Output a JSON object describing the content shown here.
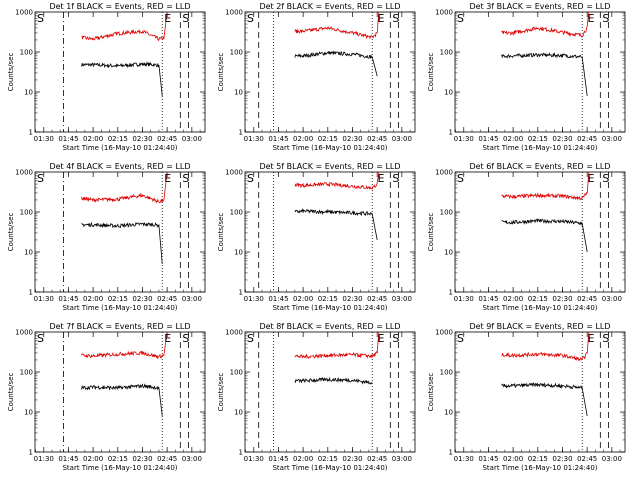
{
  "chart_data": [
    {
      "title": "Det 1f BLACK = Events, RED = LLD",
      "xlabel": "Start Time (16-May-10 01:24:40)",
      "ylabel": "Counts/sec",
      "type": "line",
      "yscale": "log",
      "ylim": [
        1,
        1000
      ],
      "xlim": [
        "01:24:40",
        "03:08"
      ],
      "xticks": [
        "01:30",
        "01:45",
        "02:00",
        "02:15",
        "02:30",
        "02:45",
        "03:00"
      ],
      "yticks": [
        "1",
        "10",
        "100",
        "1000"
      ],
      "vlines": [
        {
          "time": "01:42",
          "style": "dashdot"
        },
        {
          "time": "02:42",
          "style": "dotted"
        },
        {
          "time": "02:53",
          "style": "dashed"
        },
        {
          "time": "02:58",
          "style": "dashed"
        }
      ],
      "markers": [
        {
          "label": "E",
          "time": "02:42"
        },
        {
          "label": "S",
          "time": "02:53"
        }
      ],
      "series": [
        {
          "color": "#000000",
          "x": [
            "01:53",
            "02:00",
            "02:15",
            "02:30",
            "02:40",
            "02:42"
          ],
          "y": [
            48,
            48,
            45,
            50,
            47,
            8
          ]
        },
        {
          "color": "#e00000",
          "x": [
            "01:53",
            "02:00",
            "02:15",
            "02:30",
            "02:40",
            "02:43",
            "02:45"
          ],
          "y": [
            230,
            210,
            290,
            330,
            210,
            220,
            1000
          ]
        }
      ]
    },
    {
      "title": "Det 2f BLACK = Events, RED = LLD",
      "xlabel": "Start Time (16-May-10 01:24:40)",
      "ylabel": "Counts/sec",
      "type": "line",
      "yscale": "log",
      "ylim": [
        1,
        1000
      ],
      "xlim": [
        "01:24:40",
        "03:08"
      ],
      "xticks": [
        "01:30",
        "01:45",
        "02:00",
        "02:15",
        "02:30",
        "02:45",
        "03:00"
      ],
      "yticks": [
        "1",
        "10",
        "100",
        "1000"
      ],
      "vlines": [
        {
          "time": "01:33",
          "style": "dashed"
        },
        {
          "time": "01:42",
          "style": "dotted"
        },
        {
          "time": "02:42",
          "style": "dotted"
        },
        {
          "time": "02:53",
          "style": "dashed"
        },
        {
          "time": "02:58",
          "style": "dashed"
        }
      ],
      "markers": [
        {
          "label": "E",
          "time": "02:44"
        },
        {
          "label": "S",
          "time": "02:53"
        }
      ],
      "series": [
        {
          "color": "#000000",
          "x": [
            "01:55",
            "02:00",
            "02:15",
            "02:30",
            "02:42",
            "02:45"
          ],
          "y": [
            78,
            80,
            95,
            88,
            75,
            25
          ]
        },
        {
          "color": "#e00000",
          "x": [
            "01:55",
            "02:00",
            "02:15",
            "02:30",
            "02:42",
            "02:45",
            "02:46"
          ],
          "y": [
            330,
            330,
            400,
            300,
            230,
            300,
            1000
          ]
        }
      ]
    },
    {
      "title": "Det 3f BLACK = Events, RED = LLD",
      "xlabel": "Start Time (16-May-10 01:24:40)",
      "ylabel": "Counts/sec",
      "type": "line",
      "yscale": "log",
      "ylim": [
        1,
        1000
      ],
      "xlim": [
        "01:24:40",
        "03:08"
      ],
      "xticks": [
        "01:30",
        "01:45",
        "02:00",
        "02:15",
        "02:30",
        "02:45",
        "03:00"
      ],
      "yticks": [
        "1",
        "10",
        "100",
        "1000"
      ],
      "vlines": [
        {
          "time": "02:42",
          "style": "dotted"
        },
        {
          "time": "02:53",
          "style": "dashed"
        },
        {
          "time": "02:58",
          "style": "dashed"
        }
      ],
      "markers": [
        {
          "label": "E",
          "time": "02:44"
        },
        {
          "label": "S",
          "time": "02:53"
        }
      ],
      "series": [
        {
          "color": "#000000",
          "x": [
            "01:53",
            "02:00",
            "02:15",
            "02:30",
            "02:42",
            "02:45"
          ],
          "y": [
            78,
            80,
            85,
            82,
            75,
            8
          ]
        },
        {
          "color": "#e00000",
          "x": [
            "01:53",
            "02:00",
            "02:15",
            "02:30",
            "02:42",
            "02:45",
            "02:46"
          ],
          "y": [
            300,
            300,
            400,
            310,
            260,
            400,
            1000
          ]
        }
      ]
    },
    {
      "title": "Det 4f BLACK = Events, RED = LLD",
      "xlabel": "Start Time (16-May-10 01:24:40)",
      "ylabel": "Counts/sec",
      "type": "line",
      "yscale": "log",
      "ylim": [
        1,
        1000
      ],
      "xlim": [
        "01:24:40",
        "03:08"
      ],
      "xticks": [
        "01:30",
        "01:45",
        "02:00",
        "02:15",
        "02:30",
        "02:45",
        "03:00"
      ],
      "yticks": [
        "1",
        "10",
        "100",
        "1000"
      ],
      "vlines": [
        {
          "time": "01:42",
          "style": "dashdot"
        },
        {
          "time": "02:42",
          "style": "dotted"
        },
        {
          "time": "02:53",
          "style": "dashed"
        },
        {
          "time": "02:58",
          "style": "dashed"
        }
      ],
      "markers": [
        {
          "label": "E",
          "time": "02:42"
        },
        {
          "label": "S",
          "time": "02:53"
        }
      ],
      "series": [
        {
          "color": "#000000",
          "x": [
            "01:53",
            "02:00",
            "02:15",
            "02:30",
            "02:40",
            "02:42"
          ],
          "y": [
            48,
            48,
            45,
            50,
            47,
            5
          ]
        },
        {
          "color": "#e00000",
          "x": [
            "01:53",
            "02:00",
            "02:15",
            "02:30",
            "02:40",
            "02:43",
            "02:45"
          ],
          "y": [
            220,
            200,
            210,
            260,
            180,
            200,
            1000
          ]
        }
      ]
    },
    {
      "title": "Det 5f BLACK = Events, RED = LLD",
      "xlabel": "Start Time (16-May-10 01:24:40)",
      "ylabel": "Counts/sec",
      "type": "line",
      "yscale": "log",
      "ylim": [
        1,
        1000
      ],
      "xlim": [
        "01:24:40",
        "03:08"
      ],
      "xticks": [
        "01:30",
        "01:45",
        "02:00",
        "02:15",
        "02:30",
        "02:45",
        "03:00"
      ],
      "yticks": [
        "1",
        "10",
        "100",
        "1000"
      ],
      "vlines": [
        {
          "time": "01:33",
          "style": "dashed"
        },
        {
          "time": "01:42",
          "style": "dotted"
        },
        {
          "time": "02:42",
          "style": "dotted"
        },
        {
          "time": "02:53",
          "style": "dashed"
        },
        {
          "time": "02:58",
          "style": "dashed"
        }
      ],
      "markers": [
        {
          "label": "E",
          "time": "02:44"
        },
        {
          "label": "S",
          "time": "02:53"
        }
      ],
      "series": [
        {
          "color": "#000000",
          "x": [
            "01:55",
            "02:00",
            "02:15",
            "02:30",
            "02:42",
            "02:45"
          ],
          "y": [
            100,
            105,
            100,
            95,
            90,
            20
          ]
        },
        {
          "color": "#e00000",
          "x": [
            "01:55",
            "02:00",
            "02:15",
            "02:30",
            "02:42",
            "02:45",
            "02:46"
          ],
          "y": [
            480,
            460,
            500,
            440,
            400,
            500,
            1000
          ]
        }
      ]
    },
    {
      "title": "Det 6f BLACK = Events, RED = LLD",
      "xlabel": "Start Time (16-May-10 01:24:40)",
      "ylabel": "Counts/sec",
      "type": "line",
      "yscale": "log",
      "ylim": [
        1,
        1000
      ],
      "xlim": [
        "01:24:40",
        "03:08"
      ],
      "xticks": [
        "01:30",
        "01:45",
        "02:00",
        "02:15",
        "02:30",
        "02:45",
        "03:00"
      ],
      "yticks": [
        "1",
        "10",
        "100",
        "1000"
      ],
      "vlines": [
        {
          "time": "02:42",
          "style": "dotted"
        },
        {
          "time": "02:53",
          "style": "dashed"
        },
        {
          "time": "02:58",
          "style": "dashed"
        }
      ],
      "markers": [
        {
          "label": "E",
          "time": "02:44"
        },
        {
          "label": "S",
          "time": "02:53"
        }
      ],
      "series": [
        {
          "color": "#000000",
          "x": [
            "01:53",
            "02:00",
            "02:15",
            "02:30",
            "02:42",
            "02:45"
          ],
          "y": [
            55,
            55,
            60,
            58,
            52,
            10
          ]
        },
        {
          "color": "#e00000",
          "x": [
            "01:53",
            "02:00",
            "02:15",
            "02:30",
            "02:42",
            "02:45",
            "02:46"
          ],
          "y": [
            250,
            240,
            260,
            250,
            220,
            300,
            1000
          ]
        }
      ]
    },
    {
      "title": "Det 7f BLACK = Events, RED = LLD",
      "xlabel": "Start Time (16-May-10 01:24:40)",
      "ylabel": "Counts/sec",
      "type": "line",
      "yscale": "log",
      "ylim": [
        1,
        1000
      ],
      "xlim": [
        "01:24:40",
        "03:08"
      ],
      "xticks": [
        "01:30",
        "01:45",
        "02:00",
        "02:15",
        "02:30",
        "02:45",
        "03:00"
      ],
      "yticks": [
        "1",
        "10",
        "100",
        "1000"
      ],
      "vlines": [
        {
          "time": "01:42",
          "style": "dashdot"
        },
        {
          "time": "02:42",
          "style": "dotted"
        },
        {
          "time": "02:53",
          "style": "dashed"
        },
        {
          "time": "02:58",
          "style": "dashed"
        }
      ],
      "markers": [
        {
          "label": "E",
          "time": "02:42"
        },
        {
          "label": "S",
          "time": "02:53"
        }
      ],
      "series": [
        {
          "color": "#000000",
          "x": [
            "01:53",
            "02:00",
            "02:15",
            "02:30",
            "02:40",
            "02:42"
          ],
          "y": [
            40,
            42,
            40,
            45,
            40,
            8
          ]
        },
        {
          "color": "#e00000",
          "x": [
            "01:53",
            "02:00",
            "02:15",
            "02:30",
            "02:40",
            "02:43",
            "02:45"
          ],
          "y": [
            260,
            250,
            280,
            300,
            240,
            260,
            1000
          ]
        }
      ]
    },
    {
      "title": "Det 8f BLACK = Events, RED = LLD",
      "xlabel": "Start Time (16-May-10 01:24:40)",
      "ylabel": "Counts/sec",
      "type": "line",
      "yscale": "log",
      "ylim": [
        1,
        1000
      ],
      "xlim": [
        "01:24:40",
        "03:08"
      ],
      "xticks": [
        "01:30",
        "01:45",
        "02:00",
        "02:15",
        "02:30",
        "02:45",
        "03:00"
      ],
      "yticks": [
        "1",
        "10",
        "100",
        "1000"
      ],
      "vlines": [
        {
          "time": "01:33",
          "style": "dashed"
        },
        {
          "time": "01:42",
          "style": "dotted"
        },
        {
          "time": "02:42",
          "style": "dotted"
        },
        {
          "time": "02:53",
          "style": "dashed"
        },
        {
          "time": "02:58",
          "style": "dashed"
        }
      ],
      "markers": [
        {
          "label": "E",
          "time": "02:44"
        },
        {
          "label": "S",
          "time": "02:53"
        }
      ],
      "series": [
        {
          "color": "#000000",
          "x": [
            "01:55",
            "02:00",
            "02:15",
            "02:30",
            "02:40",
            "02:42"
          ],
          "y": [
            60,
            60,
            65,
            62,
            55,
            55
          ]
        },
        {
          "color": "#e00000",
          "x": [
            "01:55",
            "02:00",
            "02:15",
            "02:30",
            "02:42",
            "02:45",
            "02:46"
          ],
          "y": [
            250,
            240,
            260,
            270,
            250,
            300,
            1000
          ]
        }
      ]
    },
    {
      "title": "Det 9f BLACK = Events, RED = LLD",
      "xlabel": "Start Time (16-May-10 01:24:40)",
      "ylabel": "Counts/sec",
      "type": "line",
      "yscale": "log",
      "ylim": [
        1,
        1000
      ],
      "xlim": [
        "01:24:40",
        "03:08"
      ],
      "xticks": [
        "01:30",
        "01:45",
        "02:00",
        "02:15",
        "02:30",
        "02:45",
        "03:00"
      ],
      "yticks": [
        "1",
        "10",
        "100",
        "1000"
      ],
      "vlines": [
        {
          "time": "02:42",
          "style": "dotted"
        },
        {
          "time": "02:53",
          "style": "dashed"
        },
        {
          "time": "02:58",
          "style": "dashed"
        }
      ],
      "markers": [
        {
          "label": "E",
          "time": "02:44"
        },
        {
          "label": "S",
          "time": "02:53"
        }
      ],
      "series": [
        {
          "color": "#000000",
          "x": [
            "01:53",
            "02:00",
            "02:15",
            "02:30",
            "02:42",
            "02:45"
          ],
          "y": [
            45,
            45,
            48,
            45,
            40,
            8
          ]
        },
        {
          "color": "#e00000",
          "x": [
            "01:53",
            "02:00",
            "02:15",
            "02:30",
            "02:42",
            "02:45",
            "02:46"
          ],
          "y": [
            270,
            260,
            280,
            260,
            200,
            300,
            1000
          ]
        }
      ]
    }
  ]
}
